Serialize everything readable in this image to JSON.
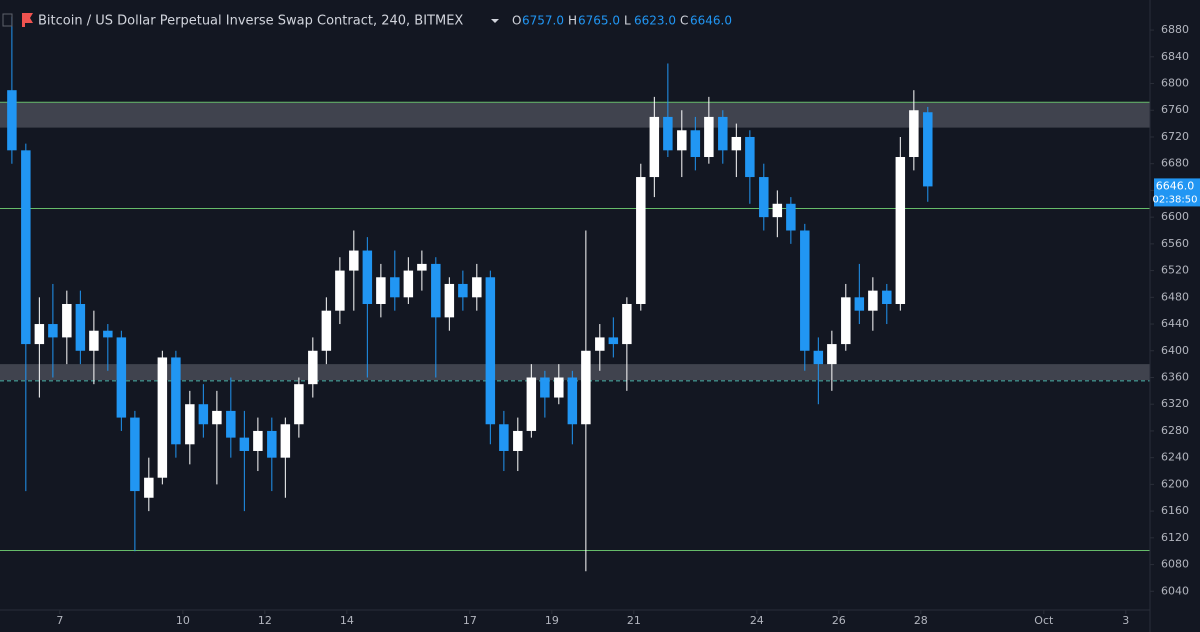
{
  "chart_data": {
    "type": "candlestick",
    "header": {
      "title": "Bitcoin / US Dollar Perpetual Inverse Swap Contract, 240, BITMEX",
      "ohlc": [
        {
          "label": "O",
          "value": "6757.0"
        },
        {
          "label": "H",
          "value": "6765.0"
        },
        {
          "label": "L",
          "value": "6623.0"
        },
        {
          "label": "C",
          "value": "6646.0"
        }
      ]
    },
    "last_price": {
      "value": 6646,
      "label": "6646.0",
      "countdown": "02:38:50"
    },
    "up_color": "#ffffff",
    "down_color": "#2196f3",
    "x": [
      5.83,
      6.17,
      6.5,
      6.83,
      7.17,
      7.5,
      7.83,
      8.17,
      8.5,
      8.83,
      9.17,
      9.5,
      9.83,
      10.17,
      10.5,
      10.83,
      11.17,
      11.5,
      11.83,
      12.17,
      12.5,
      12.83,
      13.17,
      13.5,
      13.83,
      14.17,
      14.5,
      14.83,
      15.17,
      15.5,
      15.83,
      16.17,
      16.5,
      16.83,
      17.17,
      17.5,
      17.83,
      18.17,
      18.5,
      18.83,
      19.17,
      19.5,
      19.83,
      20.17,
      20.5,
      20.83,
      21.17,
      21.5,
      21.83,
      22.17,
      22.5,
      22.83,
      23.17,
      23.5,
      23.83,
      24.17,
      24.5,
      24.83,
      25.17,
      25.5,
      25.83,
      26.17,
      26.5,
      26.83,
      27.17,
      27.5,
      27.83,
      28.17
    ],
    "open": [
      6790,
      6700,
      6410,
      6440,
      6420,
      6470,
      6400,
      6430,
      6420,
      6300,
      6180,
      6210,
      6390,
      6260,
      6320,
      6290,
      6310,
      6270,
      6250,
      6280,
      6240,
      6290,
      6350,
      6400,
      6460,
      6520,
      6550,
      6470,
      6510,
      6480,
      6520,
      6530,
      6450,
      6500,
      6480,
      6510,
      6290,
      6250,
      6280,
      6360,
      6330,
      6360,
      6290,
      6400,
      6420,
      6410,
      6470,
      6660,
      6750,
      6700,
      6730,
      6690,
      6750,
      6700,
      6720,
      6660,
      6600,
      6620,
      6580,
      6400,
      6380,
      6410,
      6480,
      6460,
      6490,
      6470,
      6690,
      6757
    ],
    "high": [
      6900,
      6710,
      6480,
      6500,
      6490,
      6490,
      6460,
      6440,
      6430,
      6310,
      6240,
      6400,
      6400,
      6340,
      6350,
      6340,
      6360,
      6310,
      6300,
      6300,
      6300,
      6360,
      6420,
      6480,
      6540,
      6580,
      6570,
      6530,
      6550,
      6540,
      6550,
      6540,
      6510,
      6520,
      6530,
      6520,
      6310,
      6300,
      6380,
      6370,
      6380,
      6370,
      6580,
      6440,
      6450,
      6480,
      6680,
      6780,
      6830,
      6760,
      6750,
      6780,
      6760,
      6740,
      6730,
      6680,
      6640,
      6630,
      6590,
      6420,
      6430,
      6500,
      6530,
      6510,
      6500,
      6720,
      6790,
      6765
    ],
    "low": [
      6680,
      6190,
      6330,
      6360,
      6380,
      6380,
      6350,
      6370,
      6280,
      6100,
      6160,
      6200,
      6240,
      6230,
      6270,
      6200,
      6240,
      6160,
      6220,
      6190,
      6180,
      6270,
      6330,
      6380,
      6440,
      6460,
      6360,
      6450,
      6460,
      6470,
      6490,
      6360,
      6430,
      6460,
      6460,
      6260,
      6220,
      6220,
      6270,
      6300,
      6320,
      6260,
      6070,
      6370,
      6390,
      6340,
      6460,
      6630,
      6690,
      6660,
      6670,
      6680,
      6680,
      6660,
      6620,
      6580,
      6570,
      6560,
      6370,
      6320,
      6340,
      6400,
      6440,
      6430,
      6440,
      6460,
      6670,
      6623
    ],
    "close": [
      6700,
      6410,
      6440,
      6420,
      6470,
      6400,
      6430,
      6420,
      6300,
      6190,
      6210,
      6390,
      6260,
      6320,
      6290,
      6310,
      6270,
      6250,
      6280,
      6240,
      6290,
      6350,
      6400,
      6460,
      6520,
      6550,
      6470,
      6510,
      6480,
      6520,
      6530,
      6450,
      6500,
      6480,
      6510,
      6290,
      6250,
      6280,
      6360,
      6330,
      6360,
      6290,
      6400,
      6420,
      6410,
      6470,
      6660,
      6750,
      6700,
      6730,
      6690,
      6750,
      6700,
      6720,
      6660,
      6600,
      6620,
      6580,
      6400,
      6380,
      6410,
      6480,
      6460,
      6490,
      6470,
      6690,
      6760,
      6646
    ],
    "levels": [
      {
        "value": 6772,
        "color": "#66bb6a"
      },
      {
        "value": 6613,
        "color": "#66bb6a"
      },
      {
        "value": 6101,
        "color": "#66bb6a"
      }
    ],
    "dashed_level": {
      "value": 6355,
      "color": "#4db6ac"
    },
    "zones": [
      [
        6734,
        6772
      ],
      [
        6356,
        6380
      ]
    ],
    "xlim": [
      5.54,
      33.59
    ],
    "xticks": [
      7,
      10,
      12,
      14,
      17,
      19,
      21,
      24,
      26,
      28,
      {
        "value": 31,
        "label": "Oct"
      },
      {
        "value": 33,
        "label": "3"
      }
    ],
    "ylim": [
      6012,
      6925
    ],
    "yticks": [
      6040,
      6080,
      6120,
      6160,
      6200,
      6240,
      6280,
      6320,
      6360,
      6400,
      6440,
      6480,
      6520,
      6560,
      6600,
      6640,
      6680,
      6720,
      6760,
      6800,
      6840,
      6880
    ]
  }
}
